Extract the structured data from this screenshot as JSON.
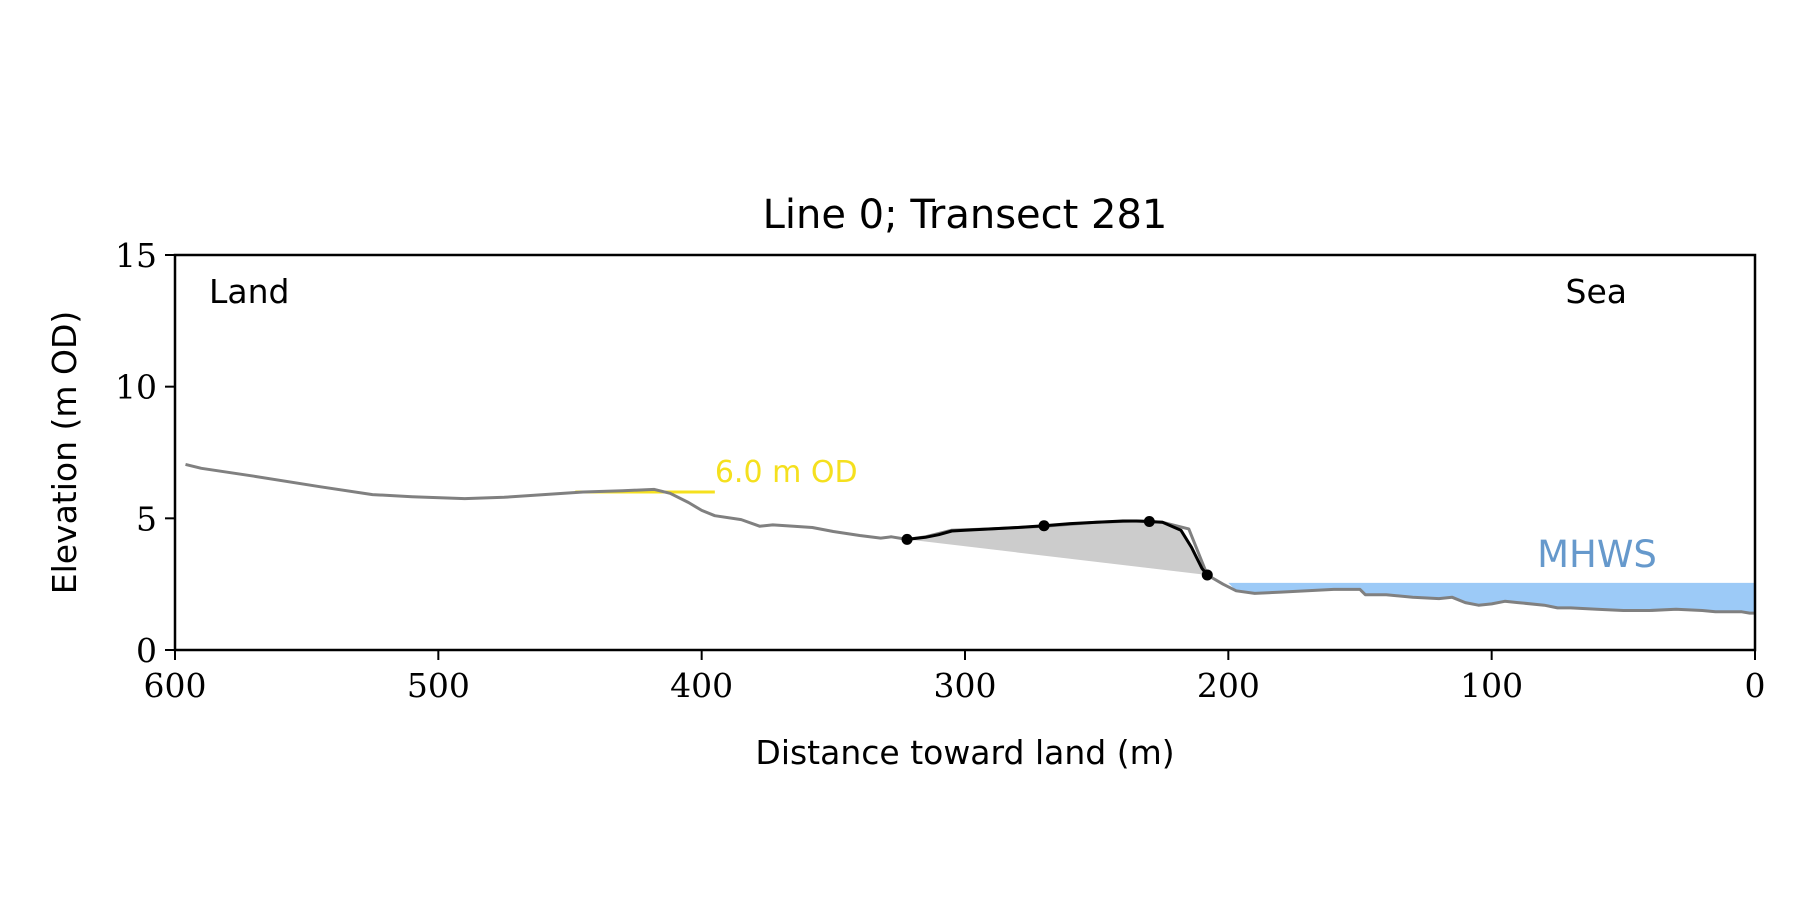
{
  "chart_data": {
    "type": "line",
    "title": "Line 0; Transect 281",
    "xlabel": "Distance toward land (m)",
    "ylabel": "Elevation (m OD)",
    "xlim": [
      600,
      0
    ],
    "ylim": [
      0,
      15
    ],
    "x_ticks": [
      "600",
      "500",
      "400",
      "300",
      "200",
      "100",
      "0"
    ],
    "y_ticks": [
      "0",
      "5",
      "10",
      "15"
    ],
    "grid": false,
    "corner_labels": {
      "left": "Land",
      "right": "Sea"
    },
    "profile": {
      "color": "#808080",
      "x": [
        596,
        590,
        570,
        545,
        525,
        510,
        490,
        475,
        460,
        445,
        430,
        418,
        412,
        405,
        400,
        395,
        385,
        378,
        373,
        365,
        358,
        350,
        340,
        332,
        328,
        322,
        315,
        305,
        290,
        270,
        250,
        235,
        225,
        215,
        208,
        202,
        197,
        190,
        180,
        170,
        160,
        150,
        148,
        140,
        130,
        120,
        115,
        110,
        105,
        100,
        95,
        90,
        80,
        75,
        70,
        60,
        50,
        40,
        30,
        20,
        15,
        10,
        5,
        2,
        0
      ],
      "y": [
        7.05,
        6.9,
        6.6,
        6.2,
        5.9,
        5.82,
        5.75,
        5.8,
        5.9,
        6.0,
        6.05,
        6.1,
        5.95,
        5.6,
        5.3,
        5.1,
        4.95,
        4.7,
        4.75,
        4.7,
        4.65,
        4.5,
        4.35,
        4.25,
        4.3,
        4.2,
        4.3,
        4.55,
        4.6,
        4.7,
        4.85,
        4.9,
        4.85,
        4.6,
        2.85,
        2.5,
        2.25,
        2.15,
        2.2,
        2.25,
        2.3,
        2.3,
        2.1,
        2.1,
        2.0,
        1.95,
        2.0,
        1.8,
        1.7,
        1.75,
        1.85,
        1.8,
        1.7,
        1.6,
        1.6,
        1.55,
        1.5,
        1.5,
        1.55,
        1.5,
        1.45,
        1.45,
        1.45,
        1.4,
        1.4
      ]
    },
    "dune_profile": {
      "color": "#000000",
      "x": [
        322,
        315,
        310,
        305,
        300,
        290,
        280,
        270,
        260,
        250,
        240,
        235,
        230,
        225,
        218,
        214,
        212,
        210,
        208
      ],
      "y": [
        4.2,
        4.28,
        4.38,
        4.52,
        4.55,
        4.6,
        4.65,
        4.72,
        4.8,
        4.85,
        4.9,
        4.9,
        4.88,
        4.85,
        4.55,
        3.9,
        3.5,
        3.1,
        2.85
      ]
    },
    "dune_points": [
      {
        "x": 322,
        "y": 4.2
      },
      {
        "x": 270,
        "y": 4.72
      },
      {
        "x": 230,
        "y": 4.88
      },
      {
        "x": 208,
        "y": 2.85
      }
    ],
    "dune_area_fill": "#cccccc",
    "reference_line": {
      "label": "6.0 m OD",
      "y": 6.0,
      "x_from": 448,
      "x_to": 395,
      "color": "#f5e01e"
    },
    "mhws": {
      "label": "MHWS",
      "level": 2.55,
      "x_from": 200,
      "x_to": 0,
      "fill": "#9ccaf7",
      "label_color": "#6699cc"
    }
  }
}
